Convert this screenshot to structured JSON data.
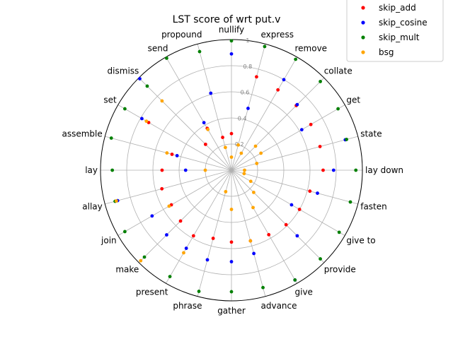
{
  "chart_data": {
    "type": "scatter",
    "subtype": "polar",
    "title": "LST score of wrt put.v",
    "categories": [
      "lay down",
      "state",
      "get",
      "collate",
      "remove",
      "express",
      "nullify",
      "propound",
      "send",
      "dismiss",
      "set",
      "assemble",
      "lay",
      "allay",
      "join",
      "make",
      "present",
      "phrase",
      "gather",
      "advance",
      "give",
      "provide",
      "give to",
      "fasten"
    ],
    "radial_ticks": [
      0.2,
      0.4,
      0.6,
      0.8,
      1
    ],
    "rlim": [
      0,
      1
    ],
    "grid": true,
    "legend_position": "top-right",
    "series": [
      {
        "name": "skip_add",
        "color": "#ff0000",
        "values": [
          0.7,
          0.7,
          0.7,
          0.7,
          0.71,
          0.74,
          0.28,
          0.26,
          0.37,
          0.28,
          0.73,
          0.47,
          0.53,
          0.55,
          0.53,
          0.55,
          0.58,
          0.54,
          0.55,
          0.56,
          0.57,
          0.59,
          0.6,
          0.62
        ]
      },
      {
        "name": "skip_cosine",
        "color": "#0000ff",
        "values": [
          0.78,
          0.9,
          0.62,
          0.71,
          0.8,
          0.49,
          0.89,
          0.61,
          0.42,
          0.99,
          0.79,
          0.43,
          0.35,
          0.9,
          0.7,
          0.7,
          0.69,
          0.71,
          0.7,
          0.66,
          0.97,
          0.71,
          0.53,
          0.68
        ]
      },
      {
        "name": "skip_mult",
        "color": "#008000",
        "values": [
          0.95,
          0.91,
          0.94,
          0.96,
          0.98,
          0.98,
          0.99,
          0.94,
          0.99,
          0.91,
          0.94,
          0.95,
          0.91,
          0.92,
          0.94,
          0.94,
          0.94,
          0.96,
          0.93,
          0.93,
          0.97,
          0.96,
          0.95,
          0.94
        ]
      },
      {
        "name": "bsg",
        "color": "#ffa500",
        "values": [
          0.1,
          0.2,
          0.26,
          0.26,
          0.15,
          0.2,
          0.1,
          0.18,
          0.36,
          0.75,
          0.75,
          0.51,
          0.2,
          0.91,
          0.55,
          0.98,
          0.73,
          0.17,
          0.3,
          0.56,
          0.33,
          0.24,
          0.17,
          0.1
        ]
      }
    ]
  }
}
